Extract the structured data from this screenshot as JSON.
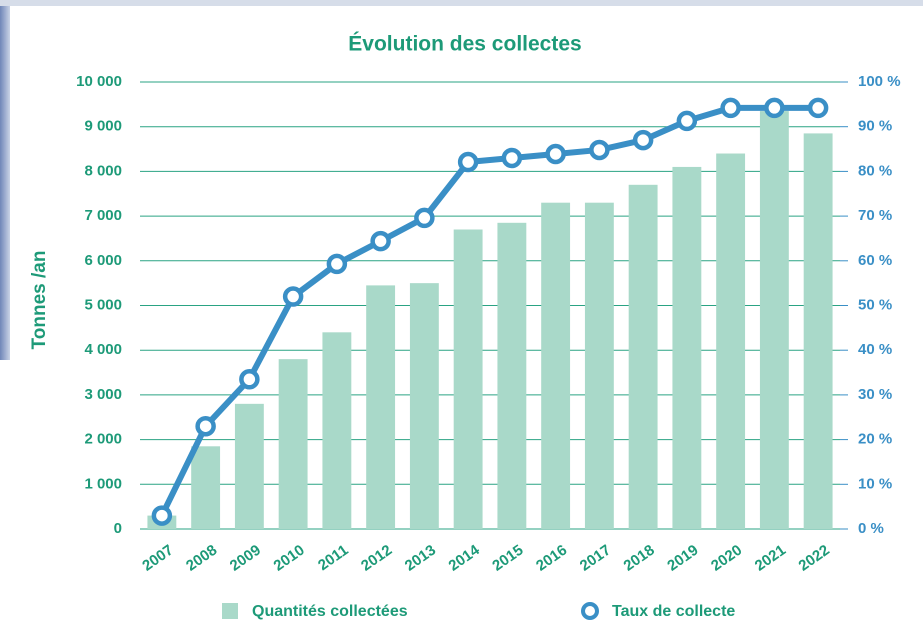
{
  "chart_data": {
    "type": "bar",
    "title": "Évolution des collectes",
    "y_label": "Tonnes /an",
    "categories": [
      "2007",
      "2008",
      "2009",
      "2010",
      "2011",
      "2012",
      "2013",
      "2014",
      "2015",
      "2016",
      "2017",
      "2018",
      "2019",
      "2020",
      "2021",
      "2022"
    ],
    "series": [
      {
        "name": "Quantités collectées",
        "type": "bar",
        "color": "#a9d9c9",
        "values": [
          300,
          1850,
          2800,
          3800,
          4400,
          5450,
          5500,
          6700,
          6850,
          7300,
          7300,
          7700,
          8100,
          8400,
          9350,
          8850
        ]
      },
      {
        "name": "Taux de collecte",
        "type": "line",
        "axis": "y2",
        "color": "#3a8fc6",
        "values": [
          3,
          23,
          33.5,
          52,
          59.3,
          64.4,
          69.6,
          82.1,
          83,
          83.9,
          84.8,
          87,
          91.3,
          94.2,
          94.2,
          94.2
        ]
      }
    ],
    "ylim": [
      0,
      10000
    ],
    "yticks": [
      0,
      {
        "value": 1000,
        "label": "1 000"
      },
      {
        "value": 2000,
        "label": "2 000"
      },
      {
        "value": 3000,
        "label": "3 000"
      },
      {
        "value": 4000,
        "label": "4 000"
      },
      {
        "value": 5000,
        "label": "5 000"
      },
      {
        "value": 6000,
        "label": "6 000"
      },
      {
        "value": 7000,
        "label": "7 000"
      },
      {
        "value": 8000,
        "label": "8 000"
      },
      {
        "value": 9000,
        "label": "9 000"
      },
      {
        "value": 10000,
        "label": "10 000"
      }
    ],
    "y2lim": [
      0,
      100
    ],
    "y2ticks": [
      {
        "value": 0,
        "label": "0 %"
      },
      {
        "value": 10,
        "label": "10 %"
      },
      {
        "value": 20,
        "label": "20 %"
      },
      {
        "value": 30,
        "label": "30 %"
      },
      {
        "value": 40,
        "label": "40 %"
      },
      {
        "value": 50,
        "label": "50 %"
      },
      {
        "value": 60,
        "label": "60 %"
      },
      {
        "value": 70,
        "label": "70 %"
      },
      {
        "value": 80,
        "label": "80 %"
      },
      {
        "value": 90,
        "label": "90 %"
      },
      {
        "value": 100,
        "label": "100 %"
      }
    ],
    "grid": true
  }
}
